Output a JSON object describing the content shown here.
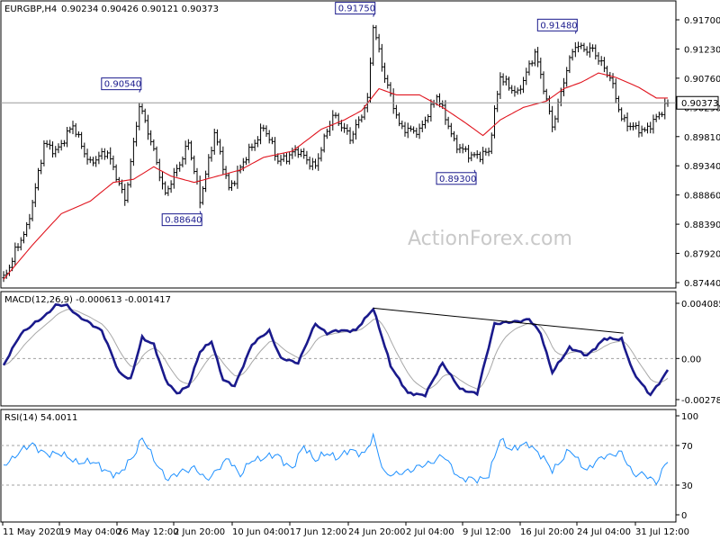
{
  "chart_data": {
    "type": "line",
    "header": {
      "symbol": "EURGBP,H4",
      "ohlc": "0.90234 0.90426 0.90121 0.90373"
    },
    "watermark": "ActionForex.com",
    "x_axis": {
      "tick_labels": [
        "11 May 2020",
        "19 May 04:00",
        "26 May 12:00",
        "2 Jun 20:00",
        "10 Jun 04:00",
        "17 Jun 12:00",
        "24 Jun 20:00",
        "2 Jul 04:00",
        "9 Jul 12:00",
        "16 Jul 20:00",
        "24 Jul 04:00",
        "31 Jul 12:00"
      ]
    },
    "price_panel": {
      "y_ticks": [
        "0.91700",
        "0.91230",
        "0.90760",
        "0.90290",
        "0.89810",
        "0.89340",
        "0.88860",
        "0.88390",
        "0.87920",
        "0.87440"
      ],
      "ylim": [
        0.8744,
        0.9196
      ],
      "current_price": "0.90373",
      "current_value": 0.90373,
      "annotations": [
        {
          "label": "0.90540",
          "value": 0.9054,
          "bar": 47
        },
        {
          "label": "0.88640",
          "value": 0.8864,
          "bar": 68
        },
        {
          "label": "0.91750",
          "value": 0.9175,
          "bar": 128
        },
        {
          "label": "0.89300",
          "value": 0.893,
          "bar": 163
        },
        {
          "label": "0.91480",
          "value": 0.9148,
          "bar": 198
        }
      ],
      "close_anchors": [
        [
          0,
          0.8755
        ],
        [
          4,
          0.88
        ],
        [
          8,
          0.8835
        ],
        [
          14,
          0.897
        ],
        [
          18,
          0.896
        ],
        [
          24,
          0.9
        ],
        [
          30,
          0.894
        ],
        [
          36,
          0.896
        ],
        [
          42,
          0.888
        ],
        [
          47,
          0.9035
        ],
        [
          52,
          0.896
        ],
        [
          56,
          0.889
        ],
        [
          60,
          0.893
        ],
        [
          64,
          0.8975
        ],
        [
          68,
          0.888
        ],
        [
          73,
          0.899
        ],
        [
          78,
          0.89
        ],
        [
          84,
          0.895
        ],
        [
          90,
          0.9
        ],
        [
          95,
          0.8945
        ],
        [
          102,
          0.896
        ],
        [
          108,
          0.8935
        ],
        [
          114,
          0.902
        ],
        [
          120,
          0.898
        ],
        [
          126,
          0.904
        ],
        [
          128,
          0.916
        ],
        [
          132,
          0.908
        ],
        [
          137,
          0.9
        ],
        [
          144,
          0.899
        ],
        [
          150,
          0.905
        ],
        [
          156,
          0.8975
        ],
        [
          162,
          0.895
        ],
        [
          168,
          0.896
        ],
        [
          172,
          0.908
        ],
        [
          178,
          0.905
        ],
        [
          184,
          0.912
        ],
        [
          190,
          0.9
        ],
        [
          195,
          0.909
        ],
        [
          198,
          0.913
        ],
        [
          204,
          0.912
        ],
        [
          210,
          0.908
        ],
        [
          214,
          0.901
        ],
        [
          218,
          0.9
        ],
        [
          222,
          0.899
        ],
        [
          226,
          0.9015
        ],
        [
          230,
          0.9035
        ]
      ],
      "ma_anchors": [
        [
          0,
          0.8755
        ],
        [
          10,
          0.881
        ],
        [
          20,
          0.886
        ],
        [
          30,
          0.888
        ],
        [
          38,
          0.891
        ],
        [
          45,
          0.8915
        ],
        [
          52,
          0.8935
        ],
        [
          58,
          0.892
        ],
        [
          66,
          0.891
        ],
        [
          74,
          0.892
        ],
        [
          82,
          0.893
        ],
        [
          90,
          0.895
        ],
        [
          100,
          0.896
        ],
        [
          110,
          0.8995
        ],
        [
          118,
          0.901
        ],
        [
          124,
          0.9025
        ],
        [
          130,
          0.906
        ],
        [
          136,
          0.905
        ],
        [
          144,
          0.905
        ],
        [
          152,
          0.903
        ],
        [
          160,
          0.9005
        ],
        [
          166,
          0.8985
        ],
        [
          172,
          0.901
        ],
        [
          180,
          0.903
        ],
        [
          188,
          0.904
        ],
        [
          194,
          0.906
        ],
        [
          200,
          0.907
        ],
        [
          206,
          0.9085
        ],
        [
          212,
          0.9078
        ],
        [
          220,
          0.9062
        ],
        [
          226,
          0.9045
        ],
        [
          230,
          0.9045
        ]
      ]
    },
    "macd_panel": {
      "title": "MACD(12,26,9) -0.000613 -0.001417",
      "y_ticks": [
        "0.004085",
        "0.00",
        "-0.002782"
      ],
      "ylim": [
        -0.0032,
        0.0044
      ],
      "values_line": [
        "0.004085",
        "0.00",
        "-0.002782"
      ],
      "zero": 0.0,
      "macd_anchors": [
        [
          0,
          -0.0005
        ],
        [
          6,
          0.0018
        ],
        [
          10,
          0.0024
        ],
        [
          14,
          0.003
        ],
        [
          18,
          0.0038
        ],
        [
          22,
          0.0038
        ],
        [
          26,
          0.003
        ],
        [
          30,
          0.0025
        ],
        [
          34,
          0.002
        ],
        [
          40,
          -0.001
        ],
        [
          44,
          -0.0015
        ],
        [
          48,
          0.0015
        ],
        [
          52,
          0.001
        ],
        [
          56,
          -0.0015
        ],
        [
          60,
          -0.0025
        ],
        [
          64,
          -0.002
        ],
        [
          68,
          0.0005
        ],
        [
          72,
          0.0012
        ],
        [
          76,
          -0.0015
        ],
        [
          80,
          -0.002
        ],
        [
          86,
          0.001
        ],
        [
          92,
          0.002
        ],
        [
          96,
          0.0
        ],
        [
          102,
          -0.0003
        ],
        [
          108,
          0.0025
        ],
        [
          112,
          0.0018
        ],
        [
          116,
          0.002
        ],
        [
          122,
          0.002
        ],
        [
          128,
          0.0036
        ],
        [
          134,
          -0.0005
        ],
        [
          140,
          -0.0025
        ],
        [
          146,
          -0.0026
        ],
        [
          152,
          -0.0003
        ],
        [
          158,
          -0.0022
        ],
        [
          164,
          -0.0025
        ],
        [
          170,
          0.0025
        ],
        [
          176,
          0.0026
        ],
        [
          182,
          0.0028
        ],
        [
          186,
          0.0018
        ],
        [
          190,
          -0.001
        ],
        [
          196,
          0.0008
        ],
        [
          202,
          0.0002
        ],
        [
          208,
          0.0014
        ],
        [
          214,
          0.0014
        ],
        [
          218,
          -0.001
        ],
        [
          224,
          -0.0026
        ],
        [
          228,
          -0.0015
        ],
        [
          230,
          -0.0008
        ]
      ],
      "trendline": [
        [
          128,
          0.0036
        ],
        [
          196,
          0.0022
        ]
      ]
    },
    "rsi_panel": {
      "title": "RSI(14) 54.0011",
      "y_ticks": [
        "100",
        "70",
        "30",
        "0"
      ],
      "ylim": [
        0,
        100
      ],
      "levels": [
        70,
        30
      ],
      "rsi_anchors": [
        [
          0,
          50
        ],
        [
          5,
          62
        ],
        [
          10,
          72
        ],
        [
          15,
          60
        ],
        [
          20,
          63
        ],
        [
          25,
          52
        ],
        [
          30,
          55
        ],
        [
          35,
          45
        ],
        [
          40,
          40
        ],
        [
          45,
          60
        ],
        [
          48,
          78
        ],
        [
          52,
          56
        ],
        [
          57,
          35
        ],
        [
          62,
          45
        ],
        [
          66,
          47
        ],
        [
          70,
          36
        ],
        [
          74,
          45
        ],
        [
          78,
          57
        ],
        [
          82,
          40
        ],
        [
          86,
          55
        ],
        [
          90,
          58
        ],
        [
          95,
          60
        ],
        [
          100,
          46
        ],
        [
          104,
          70
        ],
        [
          108,
          55
        ],
        [
          112,
          62
        ],
        [
          116,
          58
        ],
        [
          120,
          65
        ],
        [
          125,
          62
        ],
        [
          128,
          78
        ],
        [
          132,
          42
        ],
        [
          136,
          40
        ],
        [
          140,
          45
        ],
        [
          146,
          50
        ],
        [
          152,
          60
        ],
        [
          158,
          37
        ],
        [
          164,
          35
        ],
        [
          168,
          40
        ],
        [
          172,
          76
        ],
        [
          176,
          66
        ],
        [
          182,
          72
        ],
        [
          186,
          60
        ],
        [
          190,
          45
        ],
        [
          196,
          65
        ],
        [
          202,
          45
        ],
        [
          208,
          60
        ],
        [
          214,
          62
        ],
        [
          218,
          42
        ],
        [
          222,
          40
        ],
        [
          226,
          33
        ],
        [
          229,
          50
        ],
        [
          230,
          54
        ]
      ]
    }
  }
}
